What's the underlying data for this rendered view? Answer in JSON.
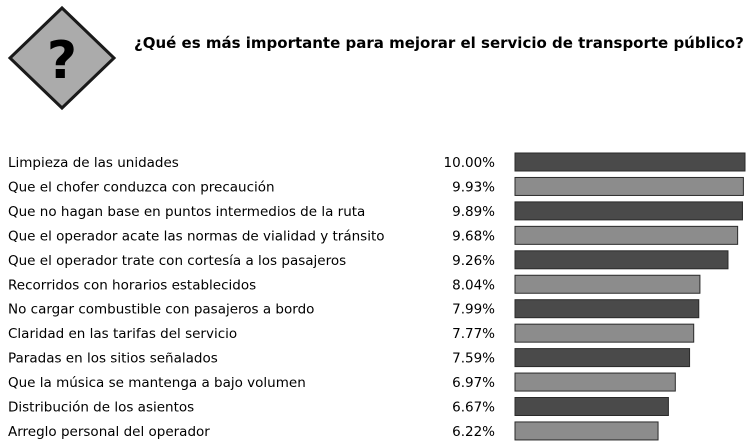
{
  "icon": {
    "name": "question-mark-warning-icon",
    "glyph": "?"
  },
  "chart_data": {
    "type": "bar",
    "orientation": "horizontal",
    "title": "¿Qué es más importante para mejorar el servicio de transporte público?",
    "xlabel": "",
    "ylabel": "",
    "xlim": [
      0,
      10
    ],
    "grid": false,
    "categories": [
      "Limpieza de las unidades",
      "Que el chofer conduzca con precaución",
      "Que no hagan base en puntos intermedios de la ruta",
      "Que el operador acate las normas de vialidad y tránsito",
      "Que el operador trate con cortesía a los pasajeros",
      "Recorridos con horarios establecidos",
      "No cargar combustible con pasajeros a bordo",
      "Claridad en las tarifas del servicio",
      "Paradas en los sitios señalados",
      "Que la música se mantenga a bajo volumen",
      "Distribución de los asientos",
      "Arreglo personal del operador"
    ],
    "values": [
      10.0,
      9.93,
      9.89,
      9.68,
      9.26,
      8.04,
      7.99,
      7.77,
      7.59,
      6.97,
      6.67,
      6.22
    ],
    "value_labels": [
      "10.00%",
      "9.93%",
      "9.89%",
      "9.68%",
      "9.26%",
      "8.04%",
      "7.99%",
      "7.77%",
      "7.59%",
      "6.97%",
      "6.67%",
      "6.22%"
    ],
    "colors": {
      "bar_dark": "#4a4a4a",
      "bar_light": "#8c8c8c",
      "bar_border": "#2a2a2a",
      "icon_fill": "#ababab",
      "icon_border": "#1a1a1a"
    }
  }
}
